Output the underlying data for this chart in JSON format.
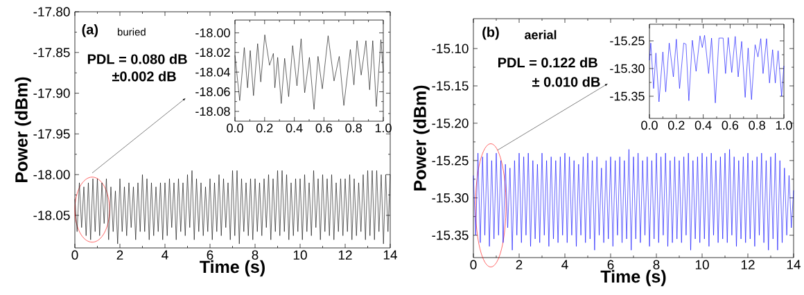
{
  "chart_data": [
    {
      "type": "line",
      "xlabel": "Time (s)",
      "ylabel": "Power (dBm)",
      "color": "#000000",
      "annotations": [
        "(a)",
        "buried",
        "PDL = 0.080 dB",
        "±0.002 dB"
      ],
      "xlim": [
        0,
        14
      ],
      "ylim": [
        -18.09,
        -17.8
      ],
      "xticks": [
        0,
        2,
        4,
        6,
        8,
        10,
        12,
        14
      ],
      "yticks": [
        {
          "value": -17.8,
          "label": "-17.80"
        },
        {
          "value": -17.85,
          "label": "-17.85"
        },
        {
          "value": -17.9,
          "label": "-17.90"
        },
        {
          "value": -17.95,
          "label": "-17.95"
        },
        {
          "value": -18.0,
          "label": "-18.00"
        },
        {
          "value": -18.05,
          "label": "-18.05"
        }
      ],
      "x": [
        0,
        0.1,
        0.2,
        0.3,
        0.4,
        0.5,
        0.6,
        0.7,
        0.8,
        0.9,
        1,
        1.1,
        1.2,
        1.3,
        1.4,
        1.5,
        1.6,
        1.7,
        1.8,
        1.9,
        2,
        2.1,
        2.2,
        2.3,
        2.4,
        2.5,
        2.6,
        2.7,
        2.8,
        2.9,
        3,
        3.1,
        3.2,
        3.3,
        3.4,
        3.5,
        3.6,
        3.7,
        3.8,
        3.9,
        4,
        4.1,
        4.2,
        4.3,
        4.4,
        4.5,
        4.6,
        4.7,
        4.8,
        4.9,
        5,
        5.1,
        5.2,
        5.3,
        5.4,
        5.5,
        5.6,
        5.7,
        5.8,
        5.9,
        6,
        6.1,
        6.2,
        6.3,
        6.4,
        6.5,
        6.6,
        6.7,
        6.8,
        6.9,
        7,
        7.1,
        7.2,
        7.3,
        7.4,
        7.5,
        7.6,
        7.7,
        7.8,
        7.9,
        8,
        8.1,
        8.2,
        8.3,
        8.4,
        8.5,
        8.6,
        8.7,
        8.8,
        8.9,
        9,
        9.1,
        9.2,
        9.3,
        9.4,
        9.5,
        9.6,
        9.7,
        9.8,
        9.9,
        10,
        10.1,
        10.2,
        10.3,
        10.4,
        10.5,
        10.6,
        10.7,
        10.8,
        10.9,
        11,
        11.1,
        11.2,
        11.3,
        11.4,
        11.5,
        11.6,
        11.7,
        11.8,
        11.9,
        12,
        12.1,
        12.2,
        12.3,
        12.4,
        12.5,
        12.6,
        12.7,
        12.8,
        12.9,
        13,
        13.1,
        13.2,
        13.3,
        13.4,
        13.5,
        13.6,
        13.7,
        13.8,
        13.9,
        14
      ],
      "values": [
        -18.03,
        -18.07,
        -18.01,
        -18.065,
        -18.015,
        -18.075,
        -18.01,
        -18.08,
        -18.005,
        -18.07,
        -18.005,
        -18.075,
        -18.01,
        -18.06,
        -18.005,
        -18.08,
        -18.015,
        -18.07,
        -18.02,
        -18.085,
        -18.005,
        -18.07,
        -18.015,
        -18.075,
        -18.01,
        -18.065,
        -18.015,
        -18.08,
        -18.01,
        -18.07,
        -18.0,
        -18.07,
        -18.005,
        -18.08,
        -18.01,
        -18.075,
        -18.015,
        -18.07,
        -18.01,
        -18.08,
        -18.01,
        -18.075,
        -18.005,
        -18.065,
        -18.01,
        -18.08,
        -18.005,
        -18.07,
        -18.01,
        -18.075,
        -18.0,
        -18.065,
        -17.995,
        -18.08,
        -18.005,
        -18.07,
        -18.01,
        -18.075,
        -18.015,
        -18.07,
        -18.005,
        -18.08,
        -18.01,
        -18.07,
        -18.0,
        -18.075,
        -18.005,
        -18.065,
        -18.01,
        -18.08,
        -17.995,
        -18.075,
        -17.995,
        -18.085,
        -18.005,
        -18.07,
        -18.01,
        -18.075,
        -18.005,
        -18.08,
        -18.005,
        -18.07,
        -18.01,
        -18.075,
        -18.005,
        -18.065,
        -18.0,
        -18.08,
        -18.005,
        -18.07,
        -17.995,
        -18.075,
        -17.995,
        -18.07,
        -18.0,
        -18.08,
        -18.01,
        -18.075,
        -18.005,
        -18.07,
        -18.005,
        -18.08,
        -18.0,
        -18.07,
        -18.01,
        -18.075,
        -17.995,
        -18.065,
        -18.005,
        -18.08,
        -18.0,
        -18.07,
        -18.005,
        -18.075,
        -18.0,
        -18.08,
        -18.01,
        -18.07,
        -18.005,
        -18.075,
        -18.005,
        -18.07,
        -18.0,
        -18.08,
        -18.005,
        -18.075,
        -18.01,
        -18.07,
        -18.0,
        -18.08,
        -17.995,
        -18.075,
        -17.995,
        -18.08,
        -17.995,
        -18.07,
        -18.0,
        -18.085,
        -18.0,
        -18.07,
        -18.0
      ]
    },
    {
      "type": "line",
      "color": "#000000",
      "xlim": [
        0,
        1
      ],
      "ylim": [
        -18.09,
        -17.987
      ],
      "xticks": [
        {
          "value": 0,
          "label": "0.0"
        },
        {
          "value": 0.2,
          "label": "0.2"
        },
        {
          "value": 0.4,
          "label": "0.4"
        },
        {
          "value": 0.6,
          "label": "0.6"
        },
        {
          "value": 0.8,
          "label": "0.8"
        },
        {
          "value": 1,
          "label": "1.0"
        }
      ],
      "yticks": [
        {
          "value": -18.0,
          "label": "-18.00"
        },
        {
          "value": -18.02,
          "label": "-18.02"
        },
        {
          "value": -18.04,
          "label": "-18.04"
        },
        {
          "value": -18.06,
          "label": "-18.06"
        },
        {
          "value": -18.08,
          "label": "-18.08"
        }
      ],
      "x": [
        0,
        0.032,
        0.063,
        0.085,
        0.103,
        0.125,
        0.153,
        0.174,
        0.201,
        0.233,
        0.259,
        0.269,
        0.288,
        0.312,
        0.335,
        0.362,
        0.389,
        0.418,
        0.446,
        0.47,
        0.502,
        0.533,
        0.56,
        0.589,
        0.628,
        0.668,
        0.703,
        0.734,
        0.778,
        0.802,
        0.823,
        0.851,
        0.883,
        0.908,
        0.929,
        0.953,
        0.984,
        1.0
      ],
      "values": [
        -18.023,
        -18.069,
        -18.015,
        -18.056,
        -18.018,
        -18.064,
        -18.011,
        -18.05,
        -18.002,
        -18.033,
        -18.021,
        -18.056,
        -18.025,
        -18.072,
        -18.026,
        -18.065,
        -18.013,
        -18.054,
        -18.006,
        -18.061,
        -18.025,
        -18.078,
        -18.024,
        -18.057,
        -18.003,
        -18.049,
        -18.024,
        -18.074,
        -18.017,
        -18.053,
        -18.008,
        -18.043,
        -18.008,
        -18.058,
        -18.008,
        -18.075,
        -18.007,
        -18.04
      ]
    },
    {
      "type": "line",
      "xlabel": "Time (s)",
      "ylabel": "Power (dBm)",
      "color": "#0000ff",
      "annotations": [
        "(b)",
        "aerial",
        "PDL = 0.122 dB",
        "± 0.010 dB"
      ],
      "xlim": [
        0,
        14
      ],
      "ylim": [
        -15.38,
        -15.06
      ],
      "xticks": [
        0,
        2,
        4,
        6,
        8,
        10,
        12,
        14
      ],
      "yticks": [
        {
          "value": -15.1,
          "label": "-15.10"
        },
        {
          "value": -15.15,
          "label": "-15.15"
        },
        {
          "value": -15.2,
          "label": "-15.20"
        },
        {
          "value": -15.25,
          "label": "-15.25"
        },
        {
          "value": -15.3,
          "label": "-15.30"
        },
        {
          "value": -15.35,
          "label": "-15.35"
        }
      ],
      "x": [
        0,
        0.1,
        0.2,
        0.3,
        0.4,
        0.5,
        0.6,
        0.7,
        0.8,
        0.9,
        1,
        1.1,
        1.2,
        1.3,
        1.4,
        1.5,
        1.6,
        1.7,
        1.8,
        1.9,
        2,
        2.1,
        2.2,
        2.3,
        2.4,
        2.5,
        2.6,
        2.7,
        2.8,
        2.9,
        3,
        3.1,
        3.2,
        3.3,
        3.4,
        3.5,
        3.6,
        3.7,
        3.8,
        3.9,
        4,
        4.1,
        4.2,
        4.3,
        4.4,
        4.5,
        4.6,
        4.7,
        4.8,
        4.9,
        5,
        5.1,
        5.2,
        5.3,
        5.4,
        5.5,
        5.6,
        5.7,
        5.8,
        5.9,
        6,
        6.1,
        6.2,
        6.3,
        6.4,
        6.5,
        6.6,
        6.7,
        6.8,
        6.9,
        7,
        7.1,
        7.2,
        7.3,
        7.4,
        7.5,
        7.6,
        7.7,
        7.8,
        7.9,
        8,
        8.1,
        8.2,
        8.3,
        8.4,
        8.5,
        8.6,
        8.7,
        8.8,
        8.9,
        9,
        9.1,
        9.2,
        9.3,
        9.4,
        9.5,
        9.6,
        9.7,
        9.8,
        9.9,
        10,
        10.1,
        10.2,
        10.3,
        10.4,
        10.5,
        10.6,
        10.7,
        10.8,
        10.9,
        11,
        11.1,
        11.2,
        11.3,
        11.4,
        11.5,
        11.6,
        11.7,
        11.8,
        11.9,
        12,
        12.1,
        12.2,
        12.3,
        12.4,
        12.5,
        12.6,
        12.7,
        12.8,
        12.9,
        13,
        13.1,
        13.2,
        13.3,
        13.4,
        13.5,
        13.6,
        13.7,
        13.8,
        13.9,
        14
      ],
      "values": [
        -15.27,
        -15.35,
        -15.24,
        -15.36,
        -15.245,
        -15.35,
        -15.24,
        -15.365,
        -15.25,
        -15.355,
        -15.24,
        -15.35,
        -15.25,
        -15.36,
        -15.255,
        -15.34,
        -15.26,
        -15.37,
        -15.25,
        -15.35,
        -15.24,
        -15.36,
        -15.245,
        -15.35,
        -15.24,
        -15.365,
        -15.25,
        -15.355,
        -15.255,
        -15.36,
        -15.24,
        -15.35,
        -15.25,
        -15.365,
        -15.245,
        -15.355,
        -15.25,
        -15.36,
        -15.245,
        -15.35,
        -15.24,
        -15.36,
        -15.245,
        -15.35,
        -15.25,
        -15.365,
        -15.255,
        -15.35,
        -15.245,
        -15.36,
        -15.24,
        -15.355,
        -15.25,
        -15.37,
        -15.245,
        -15.35,
        -15.26,
        -15.36,
        -15.25,
        -15.355,
        -15.245,
        -15.365,
        -15.25,
        -15.35,
        -15.245,
        -15.36,
        -15.25,
        -15.355,
        -15.235,
        -15.37,
        -15.245,
        -15.355,
        -15.24,
        -15.36,
        -15.25,
        -15.35,
        -15.245,
        -15.365,
        -15.25,
        -15.355,
        -15.24,
        -15.36,
        -15.245,
        -15.35,
        -15.24,
        -15.365,
        -15.25,
        -15.36,
        -15.245,
        -15.355,
        -15.25,
        -15.36,
        -15.245,
        -15.35,
        -15.24,
        -15.37,
        -15.25,
        -15.355,
        -15.245,
        -15.36,
        -15.24,
        -15.355,
        -15.245,
        -15.365,
        -15.24,
        -15.35,
        -15.25,
        -15.36,
        -15.245,
        -15.355,
        -15.24,
        -15.36,
        -15.235,
        -15.35,
        -15.245,
        -15.365,
        -15.25,
        -15.355,
        -15.245,
        -15.36,
        -15.24,
        -15.355,
        -15.25,
        -15.365,
        -15.245,
        -15.35,
        -15.24,
        -15.36,
        -15.25,
        -15.37,
        -15.245,
        -15.355,
        -15.24,
        -15.37,
        -15.25,
        -15.36,
        -15.26,
        -15.35,
        -15.27,
        -15.34,
        -15.29
      ]
    },
    {
      "type": "line",
      "color": "#0000ff",
      "xlim": [
        0,
        1
      ],
      "ylim": [
        -15.39,
        -15.22
      ],
      "xticks": [
        {
          "value": 0,
          "label": "0.0"
        },
        {
          "value": 0.2,
          "label": "0.2"
        },
        {
          "value": 0.4,
          "label": "0.4"
        },
        {
          "value": 0.6,
          "label": "0.6"
        },
        {
          "value": 0.8,
          "label": "0.8"
        },
        {
          "value": 1,
          "label": "1.0"
        }
      ],
      "yticks": [
        {
          "value": -15.25,
          "label": "-15.25"
        },
        {
          "value": -15.3,
          "label": "-15.30"
        },
        {
          "value": -15.35,
          "label": "-15.35"
        }
      ],
      "x": [
        0,
        0.01,
        0.031,
        0.048,
        0.071,
        0.1,
        0.121,
        0.147,
        0.178,
        0.2,
        0.224,
        0.255,
        0.272,
        0.293,
        0.319,
        0.347,
        0.376,
        0.393,
        0.41,
        0.44,
        0.462,
        0.49,
        0.517,
        0.548,
        0.566,
        0.586,
        0.612,
        0.638,
        0.66,
        0.686,
        0.712,
        0.734,
        0.759,
        0.786,
        0.807,
        0.828,
        0.845,
        0.871,
        0.893,
        0.916,
        0.936,
        0.957,
        0.983,
        1.0
      ],
      "values": [
        -15.285,
        -15.254,
        -15.336,
        -15.272,
        -15.36,
        -15.27,
        -15.342,
        -15.254,
        -15.315,
        -15.247,
        -15.336,
        -15.254,
        -15.256,
        -15.358,
        -15.249,
        -15.305,
        -15.241,
        -15.262,
        -15.24,
        -15.309,
        -15.245,
        -15.362,
        -15.245,
        -15.245,
        -15.309,
        -15.244,
        -15.307,
        -15.242,
        -15.315,
        -15.251,
        -15.352,
        -15.263,
        -15.356,
        -15.257,
        -15.279,
        -15.246,
        -15.309,
        -15.246,
        -15.326,
        -15.266,
        -15.326,
        -15.268,
        -15.35,
        -15.295
      ]
    }
  ]
}
